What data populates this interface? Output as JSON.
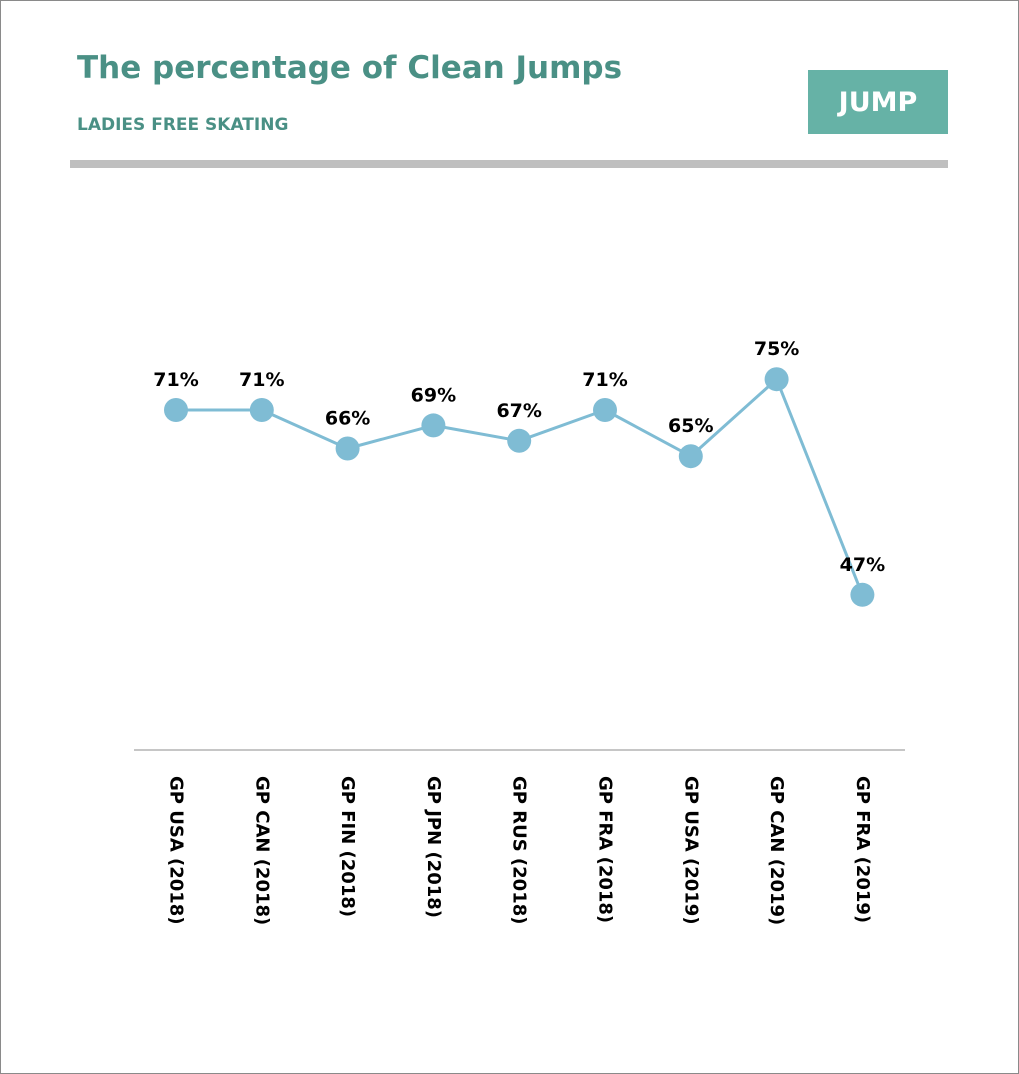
{
  "header": {
    "title": "The percentage of Clean Jumps",
    "subtitle": "LADIES FREE SKATING",
    "badge": "JUMP"
  },
  "colors": {
    "accent": "#4a9085",
    "badge_bg": "#66b2a6",
    "line": "#7fbcd4",
    "rule": "#bfbfbf"
  },
  "chart_data": {
    "type": "line",
    "title": "The percentage of Clean Jumps",
    "subtitle": "LADIES FREE SKATING",
    "categories": [
      "GP USA (2018)",
      "GP CAN (2018)",
      "GP FIN (2018)",
      "GP JPN (2018)",
      "GP RUS (2018)",
      "GP FRA (2018)",
      "GP USA (2019)",
      "GP CAN (2019)",
      "GP FRA (2019)"
    ],
    "values": [
      71,
      71,
      66,
      69,
      67,
      71,
      65,
      75,
      47
    ],
    "data_labels": [
      "71%",
      "71%",
      "66%",
      "69%",
      "67%",
      "71%",
      "65%",
      "75%",
      "47%"
    ],
    "xlabel": "",
    "ylabel": "",
    "grid": false,
    "legend": "none"
  }
}
